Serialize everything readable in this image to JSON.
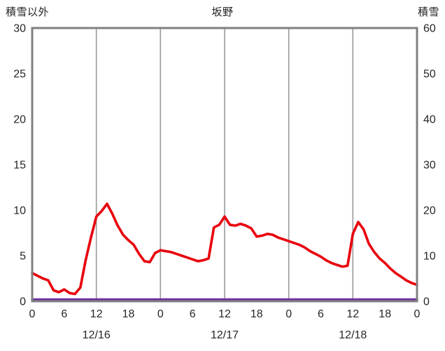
{
  "chart_data": {
    "type": "line",
    "title": "坂野",
    "left_axis_label": "積雪以外",
    "right_axis_label": "積雪",
    "xlabel": "",
    "x_unit": "hour",
    "x_range": [
      0,
      72
    ],
    "x_tick_hours": [
      0,
      6,
      12,
      18,
      24,
      30,
      36,
      42,
      48,
      54,
      60,
      66,
      72
    ],
    "x_tick_labels": [
      "0",
      "6",
      "12",
      "18",
      "0",
      "6",
      "12",
      "18",
      "0",
      "6",
      "12",
      "18",
      "0"
    ],
    "date_labels": [
      {
        "label": "12/16",
        "center_hour": 12
      },
      {
        "label": "12/17",
        "center_hour": 36
      },
      {
        "label": "12/18",
        "center_hour": 60
      }
    ],
    "left_ylim": [
      0,
      30
    ],
    "left_tick_values": [
      0,
      5,
      10,
      15,
      20,
      25,
      30
    ],
    "right_ylim": [
      0,
      60
    ],
    "right_tick_values": [
      0,
      10,
      20,
      30,
      40,
      50,
      60
    ],
    "gridline_hours": [
      12,
      24,
      36,
      48,
      60
    ],
    "grid": "vertical-only",
    "legend_position": "none",
    "colors": {
      "border": "#808080",
      "grid": "#9a9a9a",
      "tick_text": "#262626",
      "background": "#ffffff"
    },
    "series": [
      {
        "name": "積雪以外",
        "key": "non-snow",
        "axis": "left",
        "color": "#e8000d",
        "values": [
          3.1,
          2.8,
          2.5,
          2.3,
          1.2,
          1.0,
          1.3,
          0.9,
          0.8,
          1.5,
          4.5,
          7.0,
          9.3,
          9.9,
          10.7,
          9.6,
          8.3,
          7.3,
          6.7,
          6.2,
          5.2,
          4.4,
          4.3,
          5.3,
          5.6,
          5.5,
          5.4,
          5.2,
          5.0,
          4.8,
          4.6,
          4.4,
          4.5,
          4.7,
          8.1,
          8.4,
          9.3,
          8.4,
          8.3,
          8.5,
          8.3,
          8.0,
          7.1,
          7.2,
          7.4,
          7.3,
          7.0,
          6.8,
          6.6,
          6.4,
          6.2,
          5.9,
          5.5,
          5.2,
          4.9,
          4.5,
          4.2,
          4.0,
          3.8,
          3.9,
          7.4,
          8.7,
          7.9,
          6.3,
          5.4,
          4.7,
          4.2,
          3.6,
          3.1,
          2.7,
          2.3,
          2.0,
          1.8
        ]
      },
      {
        "name": "積雪",
        "key": "snow",
        "axis": "right",
        "color": "#7030a0",
        "values": [
          0,
          0,
          0,
          0,
          0,
          0,
          0,
          0,
          0,
          0,
          0,
          0,
          0,
          0,
          0,
          0,
          0,
          0,
          0,
          0,
          0,
          0,
          0,
          0,
          0,
          0,
          0,
          0,
          0,
          0,
          0,
          0,
          0,
          0,
          0,
          0,
          0,
          0,
          0,
          0,
          0,
          0,
          0,
          0,
          0,
          0,
          0,
          0,
          0,
          0,
          0,
          0,
          0,
          0,
          0,
          0,
          0,
          0,
          0,
          0,
          0,
          0,
          0,
          0,
          0,
          0,
          0,
          0,
          0,
          0,
          0,
          0,
          0
        ]
      }
    ]
  }
}
